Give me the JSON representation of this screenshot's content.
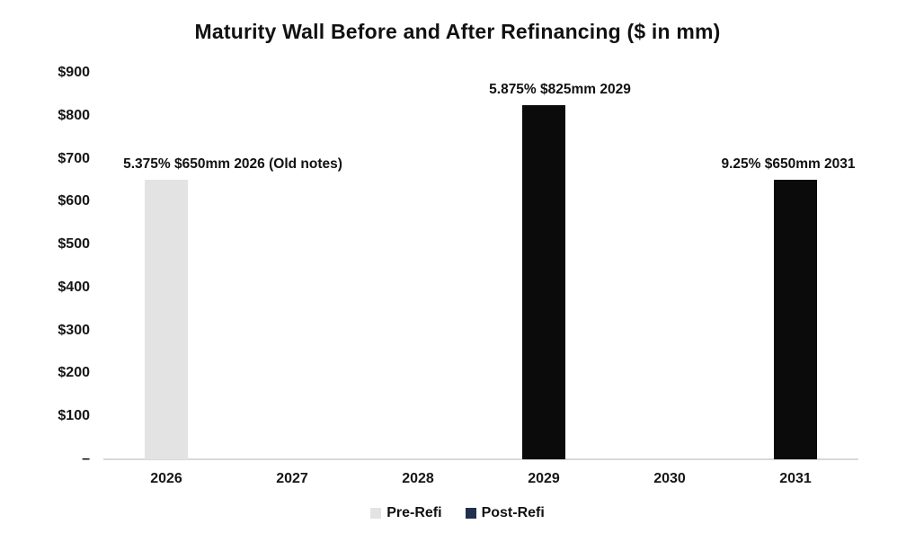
{
  "page": {
    "background": "#ffffff"
  },
  "chart_data": {
    "type": "bar",
    "title": "Maturity Wall Before and After Refinancing ($ in mm)",
    "xlabel": "",
    "ylabel": "",
    "categories": [
      "2026",
      "2027",
      "2028",
      "2029",
      "2030",
      "2031"
    ],
    "series": [
      {
        "name": "Pre-Refi",
        "color": "#e3e3e3",
        "legend_color": "#e3e3e3",
        "values": [
          650,
          null,
          null,
          null,
          null,
          null
        ],
        "labels": [
          "5.375% $650mm 2026 (Old notes)",
          "",
          "",
          "",
          "",
          ""
        ]
      },
      {
        "name": "Post-Refi",
        "color": "#0b0b0b",
        "legend_color": "#22304e",
        "values": [
          null,
          null,
          null,
          825,
          null,
          650
        ],
        "labels": [
          "",
          "",
          "",
          "5.875% $825mm 2029",
          "",
          "9.25% $650mm 2031"
        ]
      }
    ],
    "ylim": [
      0,
      900
    ],
    "ytick_step": 100,
    "yticks": [
      "$900",
      "$800",
      "$700",
      "$600",
      "$500",
      "$400",
      "$300",
      "$200",
      "$100",
      "–"
    ],
    "grid": false,
    "legend_position": "bottom",
    "axis_line_color": "#d9d9d9"
  }
}
